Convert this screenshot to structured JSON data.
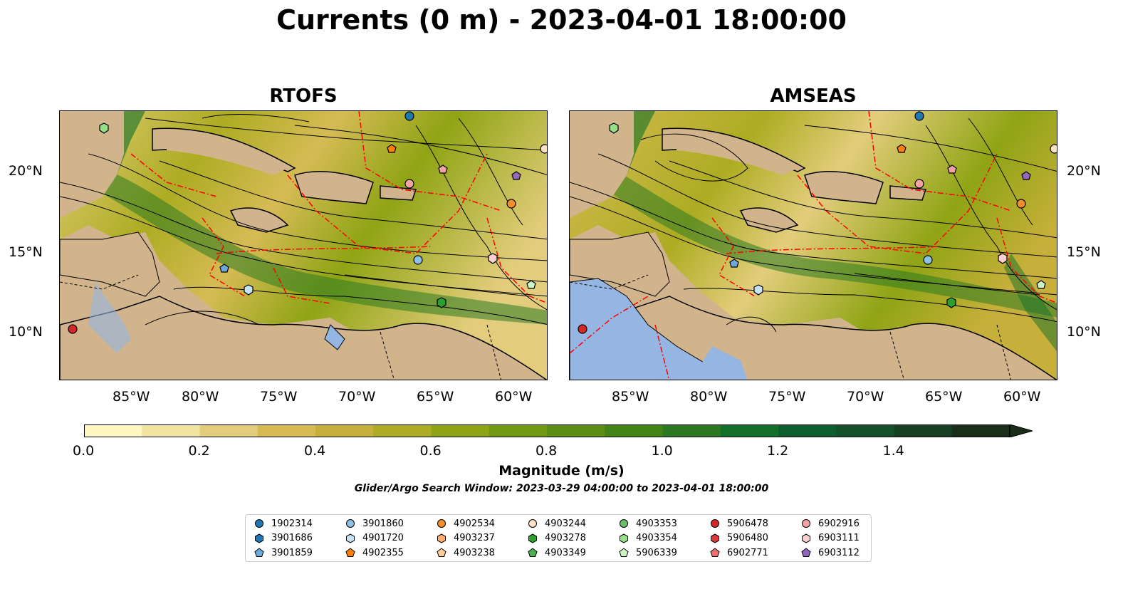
{
  "figure": {
    "title": "Currents (0 m) - 2023-04-01 18:00:00",
    "subtitle": "Glider/Argo Search Window: 2023-03-29 04:00:00 to 2023-04-01 18:00:00"
  },
  "panels": [
    {
      "title": "RTOFS"
    },
    {
      "title": "AMSEAS"
    }
  ],
  "axes": {
    "x_ticks": [
      "85°W",
      "80°W",
      "75°W",
      "70°W",
      "65°W",
      "60°W"
    ],
    "y_ticks": [
      "20°N",
      "15°N",
      "10°N"
    ]
  },
  "colorbar": {
    "label": "Magnitude (m/s)",
    "ticks": [
      "0.0",
      "0.2",
      "0.4",
      "0.6",
      "0.8",
      "1.0",
      "1.2",
      "1.4"
    ],
    "colors": [
      "#fff7c0",
      "#f1e3a0",
      "#e3cd7c",
      "#d6bb55",
      "#c6af3a",
      "#adac22",
      "#8fa414",
      "#739a10",
      "#5b8e12",
      "#438418",
      "#2b7a22",
      "#13702a",
      "#0f5e2e",
      "#14512b",
      "#163f24",
      "#1a2e1a"
    ]
  },
  "colors": {
    "land": "#d2b48c",
    "ocean_pacific": "#95b6e2",
    "eez_lines": "#ff0000",
    "streamlines": "#000000"
  },
  "legend": {
    "items": [
      {
        "label": "1902314",
        "marker": "circle",
        "color": "#1f77b4"
      },
      {
        "label": "3901686",
        "marker": "hexagon",
        "color": "#1f77b4"
      },
      {
        "label": "3901859",
        "marker": "pentagon",
        "color": "#6fa8dc"
      },
      {
        "label": "3901860",
        "marker": "circle",
        "color": "#8fc1e6"
      },
      {
        "label": "4901720",
        "marker": "hexagon",
        "color": "#c6e2f5"
      },
      {
        "label": "4902355",
        "marker": "pentagon",
        "color": "#ff7f0e"
      },
      {
        "label": "4902534",
        "marker": "circle",
        "color": "#f28e2b"
      },
      {
        "label": "4903237",
        "marker": "hexagon",
        "color": "#ffae6b"
      },
      {
        "label": "4903238",
        "marker": "pentagon",
        "color": "#ffcc99"
      },
      {
        "label": "4903244",
        "marker": "circle",
        "color": "#fde2c4"
      },
      {
        "label": "4903278",
        "marker": "hexagon",
        "color": "#2ca02c"
      },
      {
        "label": "4903349",
        "marker": "pentagon",
        "color": "#4caf50"
      },
      {
        "label": "4903353",
        "marker": "circle",
        "color": "#6abf69"
      },
      {
        "label": "4903354",
        "marker": "hexagon",
        "color": "#98df8a"
      },
      {
        "label": "5906339",
        "marker": "pentagon",
        "color": "#cdf5c4"
      },
      {
        "label": "5906478",
        "marker": "circle",
        "color": "#d62728"
      },
      {
        "label": "5906480",
        "marker": "hexagon",
        "color": "#d93a3a"
      },
      {
        "label": "6902771",
        "marker": "pentagon",
        "color": "#f07070"
      },
      {
        "label": "6902916",
        "marker": "circle",
        "color": "#f4a3a3"
      },
      {
        "label": "6903111",
        "marker": "hexagon",
        "color": "#fcd0d0"
      },
      {
        "label": "6903112",
        "marker": "pentagon",
        "color": "#9467bd"
      }
    ]
  }
}
